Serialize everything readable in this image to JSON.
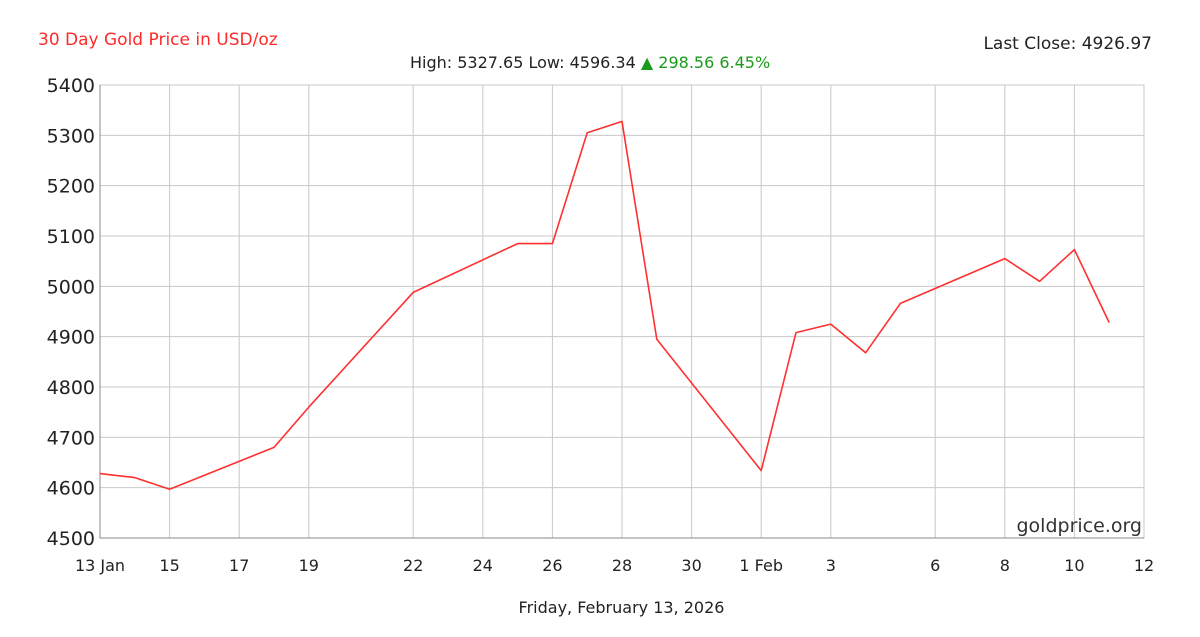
{
  "header": {
    "title": "30 Day Gold Price in USD/oz",
    "last_close_label": "Last Close: 4926.97",
    "high_low": "High: 5327.65 Low: 4596.34",
    "change_arrow": "▲",
    "change": "298.56 6.45%"
  },
  "footer": {
    "date": "Friday, February 13, 2026",
    "watermark": "goldprice.org"
  },
  "colors": {
    "line": "#ff3030",
    "title": "#ff2a2a",
    "change": "#1a9a1a",
    "grid": "#c8c8c8"
  },
  "chart_data": {
    "type": "line",
    "title": "30 Day Gold Price in USD/oz",
    "xlabel": "",
    "ylabel": "",
    "ylim": [
      4500,
      5400
    ],
    "yticks": [
      5400,
      5300,
      5200,
      5100,
      5000,
      4900,
      4800,
      4700,
      4600,
      4500
    ],
    "xlim": [
      "2026-01-13",
      "2026-02-12"
    ],
    "xticks": [
      {
        "date": "2026-01-13",
        "label": "13 Jan"
      },
      {
        "date": "2026-01-15",
        "label": "15"
      },
      {
        "date": "2026-01-17",
        "label": "17"
      },
      {
        "date": "2026-01-19",
        "label": "19"
      },
      {
        "date": "2026-01-22",
        "label": "22"
      },
      {
        "date": "2026-01-24",
        "label": "24"
      },
      {
        "date": "2026-01-26",
        "label": "26"
      },
      {
        "date": "2026-01-28",
        "label": "28"
      },
      {
        "date": "2026-01-30",
        "label": "30"
      },
      {
        "date": "2026-02-01",
        "label": "1 Feb"
      },
      {
        "date": "2026-02-03",
        "label": "3"
      },
      {
        "date": "2026-02-06",
        "label": "6"
      },
      {
        "date": "2026-02-08",
        "label": "8"
      },
      {
        "date": "2026-02-10",
        "label": "10"
      },
      {
        "date": "2026-02-12",
        "label": "12"
      }
    ],
    "grid": true,
    "series": [
      {
        "points": [
          {
            "x": "2026-01-13",
            "y": 4628
          },
          {
            "x": "2026-01-14",
            "y": 4620
          },
          {
            "x": "2026-01-15",
            "y": 4597
          },
          {
            "x": "2026-01-18",
            "y": 4680
          },
          {
            "x": "2026-01-19",
            "y": 4760
          },
          {
            "x": "2026-01-22",
            "y": 4988
          },
          {
            "x": "2026-01-25",
            "y": 5085
          },
          {
            "x": "2026-01-26",
            "y": 5085
          },
          {
            "x": "2026-01-27",
            "y": 5305
          },
          {
            "x": "2026-01-28",
            "y": 5327.65
          },
          {
            "x": "2026-01-29",
            "y": 4895
          },
          {
            "x": "2026-02-01",
            "y": 4634
          },
          {
            "x": "2026-02-02",
            "y": 4908
          },
          {
            "x": "2026-02-03",
            "y": 4925
          },
          {
            "x": "2026-02-04",
            "y": 4868
          },
          {
            "x": "2026-02-05",
            "y": 4966
          },
          {
            "x": "2026-02-08",
            "y": 5055
          },
          {
            "x": "2026-02-09",
            "y": 5010
          },
          {
            "x": "2026-02-10",
            "y": 5073
          },
          {
            "x": "2026-02-11",
            "y": 4928
          }
        ]
      }
    ]
  }
}
